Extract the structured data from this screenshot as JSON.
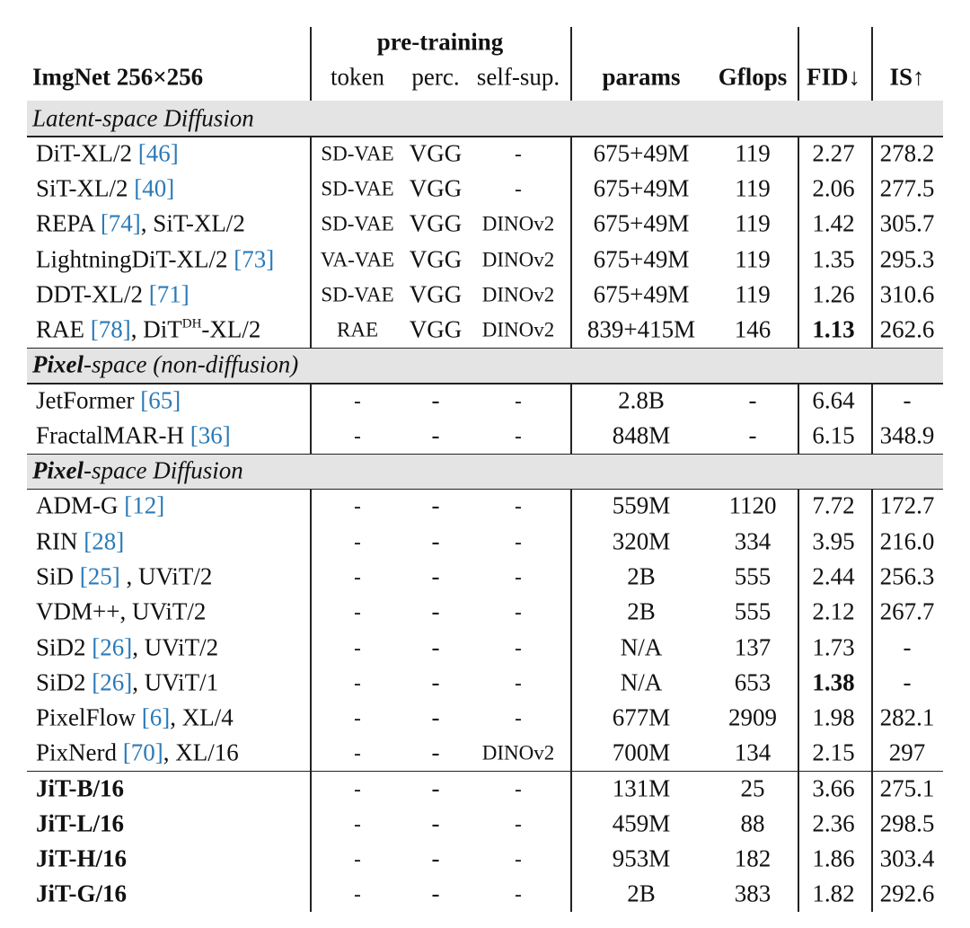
{
  "header": {
    "group": "pre-training",
    "columns": [
      "ImgNet 256×256",
      "token",
      "perc.",
      "self-sup.",
      "params",
      "Gflops",
      "FID↓",
      "IS↑"
    ]
  },
  "sections": [
    {
      "title": [
        {
          "text": "Latent-space Diffusion"
        }
      ],
      "rows": [
        {
          "method": [
            {
              "text": "DiT-XL/2 "
            },
            {
              "text": "[46]",
              "style": "ref"
            }
          ],
          "cells": [
            "SD-VAE",
            "VGG",
            "-",
            "675+49M",
            "119",
            "2.27",
            "278.2"
          ]
        },
        {
          "method": [
            {
              "text": "SiT-XL/2 "
            },
            {
              "text": "[40]",
              "style": "ref"
            }
          ],
          "cells": [
            "SD-VAE",
            "VGG",
            "-",
            "675+49M",
            "119",
            "2.06",
            "277.5"
          ]
        },
        {
          "method": [
            {
              "text": "REPA "
            },
            {
              "text": "[74]",
              "style": "ref"
            },
            {
              "text": ", SiT-XL/2"
            }
          ],
          "cells": [
            "SD-VAE",
            "VGG",
            "DINOv2",
            "675+49M",
            "119",
            "1.42",
            "305.7"
          ]
        },
        {
          "method": [
            {
              "text": "LightningDiT-XL/2 "
            },
            {
              "text": "[73]",
              "style": "ref"
            }
          ],
          "cells": [
            "VA-VAE",
            "VGG",
            "DINOv2",
            "675+49M",
            "119",
            "1.35",
            "295.3"
          ]
        },
        {
          "method": [
            {
              "text": "DDT-XL/2 "
            },
            {
              "text": "[71]",
              "style": "ref"
            }
          ],
          "cells": [
            "SD-VAE",
            "VGG",
            "DINOv2",
            "675+49M",
            "119",
            "1.26",
            "310.6"
          ]
        },
        {
          "method": [
            {
              "text": "RAE "
            },
            {
              "text": "[78]",
              "style": "ref"
            },
            {
              "text": ", DiT"
            },
            {
              "text": "DH",
              "style": "sup"
            },
            {
              "text": "-XL/2"
            }
          ],
          "cells": [
            "RAE",
            "VGG",
            "DINOv2",
            "839+415M",
            "146",
            {
              "text": "1.13",
              "bold": true
            },
            "262.6"
          ]
        }
      ]
    },
    {
      "title": [
        {
          "text": "Pixel",
          "style": "bold"
        },
        {
          "text": "-space (non-diffusion)"
        }
      ],
      "rows": [
        {
          "method": [
            {
              "text": "JetFormer "
            },
            {
              "text": "[65]",
              "style": "ref"
            }
          ],
          "cells": [
            "-",
            "-",
            "-",
            "2.8B",
            "-",
            "6.64",
            "-"
          ]
        },
        {
          "method": [
            {
              "text": "FractalMAR-H "
            },
            {
              "text": "[36]",
              "style": "ref"
            }
          ],
          "cells": [
            "-",
            "-",
            "-",
            "848M",
            "-",
            "6.15",
            "348.9"
          ]
        }
      ]
    },
    {
      "title": [
        {
          "text": "Pixel",
          "style": "bold"
        },
        {
          "text": "-space Diffusion"
        }
      ],
      "rows": [
        {
          "method": [
            {
              "text": "ADM-G "
            },
            {
              "text": "[12]",
              "style": "ref"
            }
          ],
          "cells": [
            "-",
            "-",
            "-",
            "559M",
            "1120",
            "7.72",
            "172.7"
          ]
        },
        {
          "method": [
            {
              "text": "RIN "
            },
            {
              "text": "[28]",
              "style": "ref"
            }
          ],
          "cells": [
            "-",
            "-",
            "-",
            "320M",
            "334",
            "3.95",
            "216.0"
          ]
        },
        {
          "method": [
            {
              "text": "SiD "
            },
            {
              "text": "[25]",
              "style": "ref"
            },
            {
              "text": " , UViT/2"
            }
          ],
          "cells": [
            "-",
            "-",
            "-",
            "2B",
            "555",
            "2.44",
            "256.3"
          ]
        },
        {
          "method": [
            {
              "text": "VDM++, UViT/2"
            }
          ],
          "cells": [
            "-",
            "-",
            "-",
            "2B",
            "555",
            "2.12",
            "267.7"
          ]
        },
        {
          "method": [
            {
              "text": "SiD2 "
            },
            {
              "text": "[26]",
              "style": "ref"
            },
            {
              "text": ", UViT/2"
            }
          ],
          "cells": [
            "-",
            "-",
            "-",
            "N/A",
            "137",
            "1.73",
            "-"
          ]
        },
        {
          "method": [
            {
              "text": "SiD2 "
            },
            {
              "text": "[26]",
              "style": "ref"
            },
            {
              "text": ", UViT/1"
            }
          ],
          "cells": [
            "-",
            "-",
            "-",
            "N/A",
            "653",
            {
              "text": "1.38",
              "bold": true
            },
            "-"
          ]
        },
        {
          "method": [
            {
              "text": "PixelFlow "
            },
            {
              "text": "[6]",
              "style": "ref"
            },
            {
              "text": ", XL/4"
            }
          ],
          "cells": [
            "-",
            "-",
            "-",
            "677M",
            "2909",
            "1.98",
            "282.1"
          ]
        },
        {
          "method": [
            {
              "text": "PixNerd "
            },
            {
              "text": "[70]",
              "style": "ref"
            },
            {
              "text": ", XL/16"
            }
          ],
          "cells": [
            "-",
            "-",
            "DINOv2",
            "700M",
            "134",
            "2.15",
            "297"
          ]
        },
        {
          "method": [
            {
              "text": "JiT-B/16",
              "style": "bold"
            }
          ],
          "cells": [
            "-",
            "-",
            "-",
            "131M",
            "25",
            "3.66",
            "275.1"
          ],
          "rule_before": true
        },
        {
          "method": [
            {
              "text": "JiT-L/16",
              "style": "bold"
            }
          ],
          "cells": [
            "-",
            "-",
            "-",
            "459M",
            "88",
            "2.36",
            "298.5"
          ]
        },
        {
          "method": [
            {
              "text": "JiT-H/16",
              "style": "bold"
            }
          ],
          "cells": [
            "-",
            "-",
            "-",
            "953M",
            "182",
            "1.86",
            "303.4"
          ]
        },
        {
          "method": [
            {
              "text": "JiT-G/16",
              "style": "bold"
            }
          ],
          "cells": [
            "-",
            "-",
            "-",
            "2B",
            "383",
            "1.82",
            "292.6"
          ]
        }
      ]
    }
  ]
}
